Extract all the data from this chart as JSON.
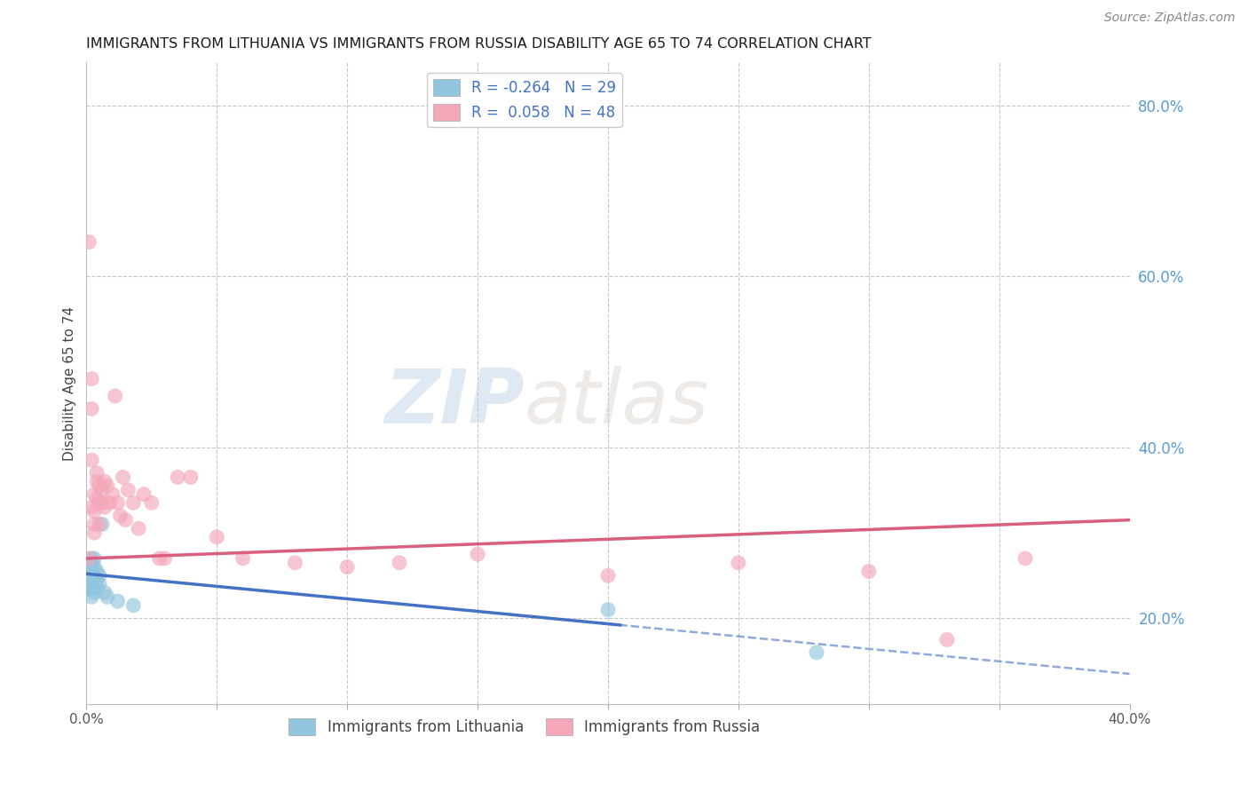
{
  "title": "IMMIGRANTS FROM LITHUANIA VS IMMIGRANTS FROM RUSSIA DISABILITY AGE 65 TO 74 CORRELATION CHART",
  "source": "Source: ZipAtlas.com",
  "ylabel": "Disability Age 65 to 74",
  "xlim": [
    0.0,
    0.4
  ],
  "ylim": [
    0.1,
    0.85
  ],
  "xticks": [
    0.0,
    0.05,
    0.1,
    0.15,
    0.2,
    0.25,
    0.3,
    0.35,
    0.4
  ],
  "xticklabels_show": [
    "0.0%",
    "40.0%"
  ],
  "yticks_right": [
    0.2,
    0.4,
    0.6,
    0.8
  ],
  "ytick_right_labels": [
    "20.0%",
    "40.0%",
    "60.0%",
    "80.0%"
  ],
  "color_blue": "#92C5DE",
  "color_pink": "#F4A7B9",
  "color_line_blue": "#4472C4",
  "color_line_pink": "#D95F7F",
  "color_grid": "#C8C8C8",
  "color_title": "#1A1A1A",
  "color_right_tick": "#5B9BD5",
  "color_legend_text": "#4472C4",
  "watermark_zip": "ZIP",
  "watermark_atlas": "atlas",
  "blue_line_solid_end": 0.2,
  "blue_line_start_y": 0.252,
  "blue_line_end_y": 0.135,
  "pink_line_start_y": 0.27,
  "pink_line_end_y": 0.315,
  "lithuania_x": [
    0.001,
    0.001,
    0.001,
    0.001,
    0.002,
    0.002,
    0.002,
    0.002,
    0.002,
    0.002,
    0.002,
    0.003,
    0.003,
    0.003,
    0.003,
    0.003,
    0.003,
    0.004,
    0.004,
    0.004,
    0.005,
    0.005,
    0.006,
    0.007,
    0.008,
    0.012,
    0.018,
    0.2,
    0.28
  ],
  "lithuania_y": [
    0.26,
    0.245,
    0.24,
    0.235,
    0.27,
    0.265,
    0.255,
    0.248,
    0.24,
    0.235,
    0.225,
    0.27,
    0.26,
    0.25,
    0.245,
    0.238,
    0.23,
    0.255,
    0.245,
    0.235,
    0.25,
    0.24,
    0.31,
    0.23,
    0.225,
    0.22,
    0.215,
    0.21,
    0.16
  ],
  "russia_x": [
    0.001,
    0.001,
    0.002,
    0.002,
    0.002,
    0.002,
    0.003,
    0.003,
    0.003,
    0.003,
    0.004,
    0.004,
    0.004,
    0.005,
    0.005,
    0.005,
    0.006,
    0.006,
    0.007,
    0.007,
    0.008,
    0.009,
    0.01,
    0.011,
    0.012,
    0.013,
    0.014,
    0.015,
    0.016,
    0.018,
    0.02,
    0.022,
    0.025,
    0.028,
    0.03,
    0.035,
    0.04,
    0.05,
    0.06,
    0.08,
    0.1,
    0.12,
    0.15,
    0.2,
    0.25,
    0.3,
    0.33,
    0.36
  ],
  "russia_y": [
    0.64,
    0.27,
    0.48,
    0.445,
    0.385,
    0.33,
    0.345,
    0.325,
    0.31,
    0.3,
    0.37,
    0.36,
    0.34,
    0.355,
    0.335,
    0.31,
    0.35,
    0.335,
    0.36,
    0.33,
    0.355,
    0.335,
    0.345,
    0.46,
    0.335,
    0.32,
    0.365,
    0.315,
    0.35,
    0.335,
    0.305,
    0.345,
    0.335,
    0.27,
    0.27,
    0.365,
    0.365,
    0.295,
    0.27,
    0.265,
    0.26,
    0.265,
    0.275,
    0.25,
    0.265,
    0.255,
    0.175,
    0.27
  ]
}
